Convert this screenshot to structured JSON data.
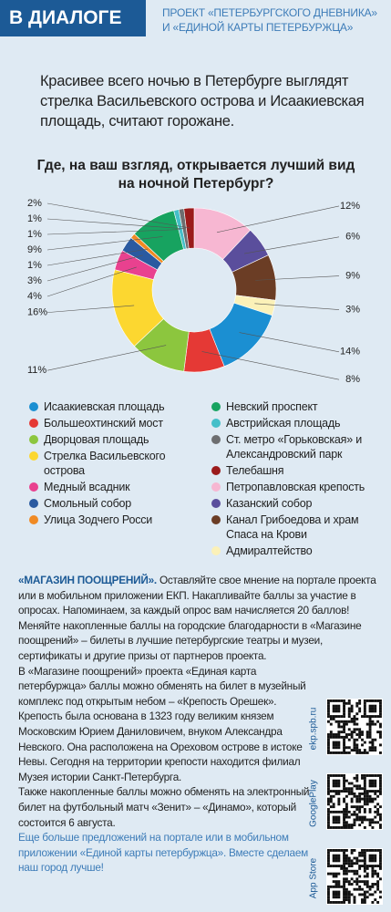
{
  "header": {
    "badge": "В ДИАЛОГЕ",
    "project": "ПРОЕКТ «ПЕТЕРБУРГСКОГО ДНЕВНИКА» И «ЕДИНОЙ КАРТЫ ПЕТЕРБУРЖЦА»"
  },
  "intro": "Красивее всего ночью в Петербурге выглядят стрелка Васильевского острова и Исаакиевская площадь, считают горожане.",
  "chart_data": {
    "type": "donut",
    "title": "Где, на ваш взгляд, открывается лучший вид на ночной Петербург?",
    "categories": [
      "Исаакиевская площадь",
      "Большеохтинский мост",
      "Дворцовая площадь",
      "Стрелка Васильевского острова",
      "Медный всадник",
      "Смольный собор",
      "Улица Зодчего Росси",
      "Невский проспект",
      "Австрийская площадь",
      "Ст. метро «Горьковская» и Александровский парк",
      "Телебашня",
      "Петропавловская крепость",
      "Казанский собор",
      "Канал Грибоедова и храм Спаса на Крови",
      "Адмиралтейство"
    ],
    "values": [
      14,
      8,
      11,
      16,
      4,
      3,
      1,
      9,
      1,
      1,
      2,
      12,
      6,
      9,
      3
    ],
    "value_labels": [
      "14%",
      "8%",
      "11%",
      "16%",
      "4%",
      "3%",
      "1%",
      "9%",
      "1%",
      "1%",
      "2%",
      "12%",
      "6%",
      "9%",
      "3%"
    ],
    "colors": [
      "#1b8fd2",
      "#e53935",
      "#8cc63e",
      "#fcd730",
      "#e9418f",
      "#2a5aa0",
      "#f08a24",
      "#17a360",
      "#44bfc9",
      "#6d6e70",
      "#9b1b1b",
      "#f7b7d2",
      "#5a4e9c",
      "#6b3d25",
      "#fbf1b8"
    ]
  },
  "promo": {
    "heading": "«МАГАЗИН ПООЩРЕНИЙ».",
    "paragraphs": [
      " Оставляйте свое мнение на портале проекта или в мобильном приложении ЕКП. Накапливайте баллы за участие в опросах. Напоминаем, за каждый опрос вам начисляется 20 баллов!",
      "Меняйте накопленные баллы на городские благодарности в «Магазине поощрений» – билеты в лучшие петербургские театры и музеи, сертификаты и другие призы от партнеров проекта.",
      "В «Магазине поощрений» проекта «Единая карта петербуржца» баллы можно обменять на билет в музейный комплекс под открытым небом – «Крепость Орешек». Крепость была основана в 1323 году великим князем Московским Юрием Даниловичем, внуком Александра Невского. Она расположена на Ореховом острове в истоке Невы. Сегодня на территории крепости находится филиал Музея истории Санкт-Петербурга.",
      "Также накопленные баллы можно обменять на электронный билет на футбольный матч «Зенит» – «Динамо», который состоится 6 августа."
    ],
    "closing": "Еще больше предложений на портале или в мобильном приложении «Единой карты петербуржца». Вместе сделаем наш город лучше!"
  },
  "qr": [
    "ekp.spb.ru",
    "GooglePlay",
    "App Store"
  ]
}
